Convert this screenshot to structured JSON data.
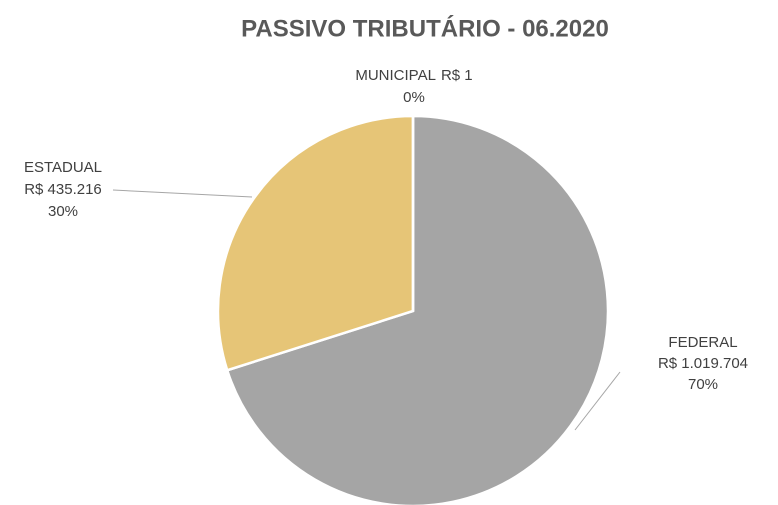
{
  "chart_data": {
    "type": "pie",
    "title": "PASSIVO TRIBUTÁRIO - 06.2020",
    "categories": [
      "FEDERAL",
      "ESTADUAL",
      "MUNICIPAL"
    ],
    "values": [
      1019704,
      435216,
      1
    ],
    "value_labels": [
      "R$ 1.019.704",
      "R$ 435.216",
      "R$ 1"
    ],
    "percent_labels": [
      "70%",
      "30%",
      "0%"
    ],
    "colors": [
      "#a5a5a5",
      "#e6c577",
      "#5b9bd5"
    ]
  }
}
